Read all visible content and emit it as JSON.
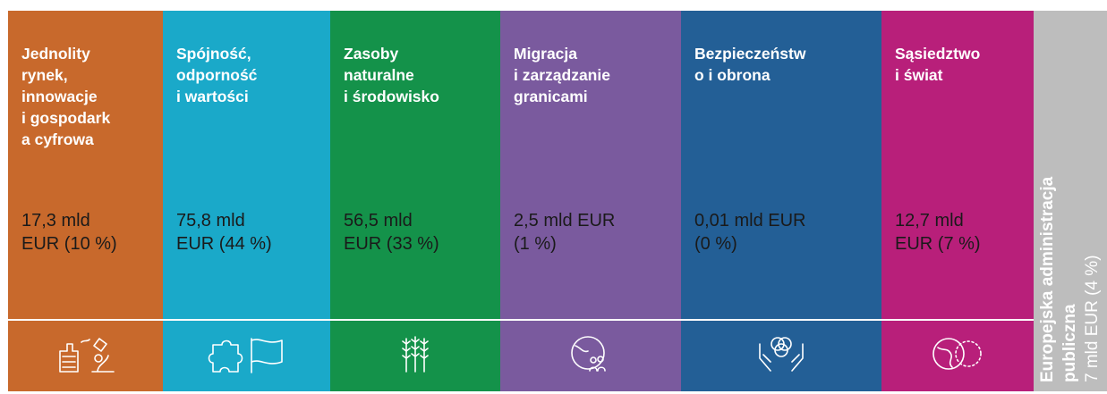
{
  "columns": [
    {
      "title": [
        "Jednolity",
        "rynek,",
        "innowacje",
        "i gospodark",
        "a cyfrowa"
      ],
      "amount": [
        "17,3 mld",
        "EUR (10 %)"
      ],
      "color": "#c8692c"
    },
    {
      "title": [
        "Spójność,",
        "odporność",
        "i wartości"
      ],
      "amount": [
        "75,8 mld",
        "EUR (44 %)"
      ],
      "color": "#1aa9c9"
    },
    {
      "title": [
        "Zasoby",
        "naturalne",
        "i środowisko"
      ],
      "amount": [
        "56,5 mld",
        "EUR (33 %)"
      ],
      "color": "#14924a"
    },
    {
      "title": [
        "Migracja",
        "i zarządzanie",
        "granicami"
      ],
      "amount": [
        "2,5 mld EUR",
        "(1 %)"
      ],
      "color": "#7a5a9e"
    },
    {
      "title": [
        "Bezpieczeństw",
        "o i obrona"
      ],
      "amount": [
        "0,01 mld EUR",
        "(0 %)"
      ],
      "color": "#235f96"
    },
    {
      "title": [
        "Sąsiedztwo",
        "i świat"
      ],
      "amount": [
        "12,7 mld",
        "EUR (7 %)"
      ],
      "color": "#b81f7a"
    }
  ],
  "side": {
    "title": [
      "Europejska administracja",
      "publiczna"
    ],
    "amount": "7 mld EUR (4 %)",
    "color": "#bdbdbd"
  }
}
